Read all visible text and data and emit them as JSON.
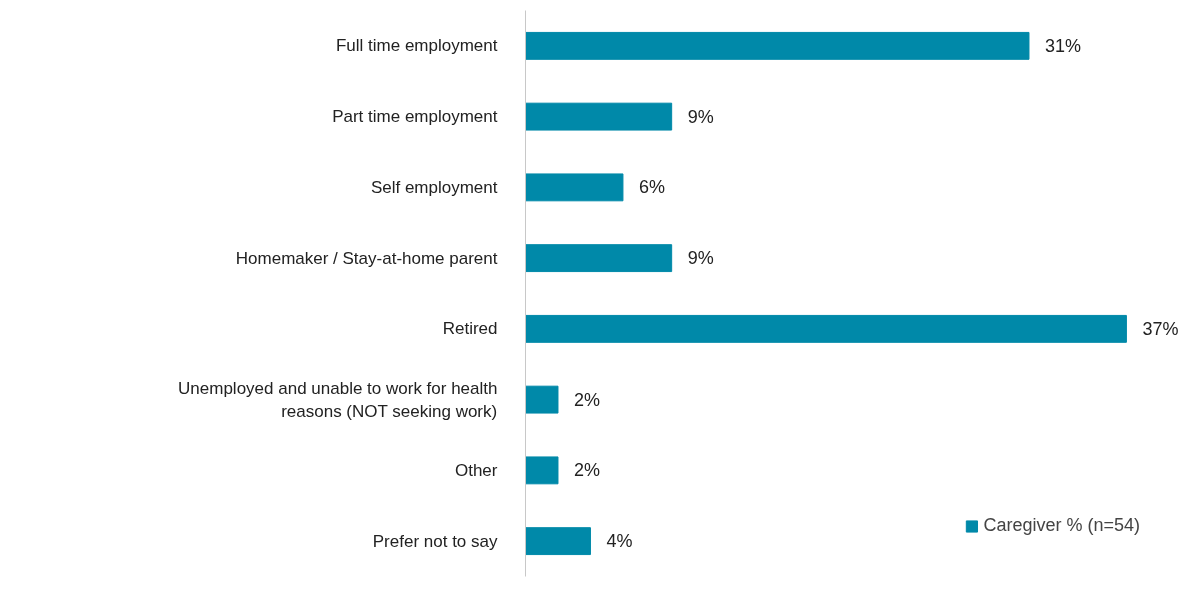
{
  "chart_data": {
    "type": "bar",
    "orientation": "horizontal",
    "categories": [
      "Full time employment",
      "Part time employment",
      "Self employment",
      "Homemaker / Stay-at-home parent",
      "Retired",
      "Unemployed and unable to work for health reasons (NOT seeking work)",
      "Other",
      "Prefer not to say"
    ],
    "series": [
      {
        "name": "Caregiver % (n=54)",
        "color": "#0089a9",
        "values": [
          31,
          9,
          6,
          9,
          37,
          2,
          2,
          4
        ],
        "value_labels": [
          "31%",
          "9%",
          "6%",
          "9%",
          "37%",
          "2%",
          "2%",
          "4%"
        ]
      }
    ],
    "legend": "bottom right",
    "grid": false
  }
}
